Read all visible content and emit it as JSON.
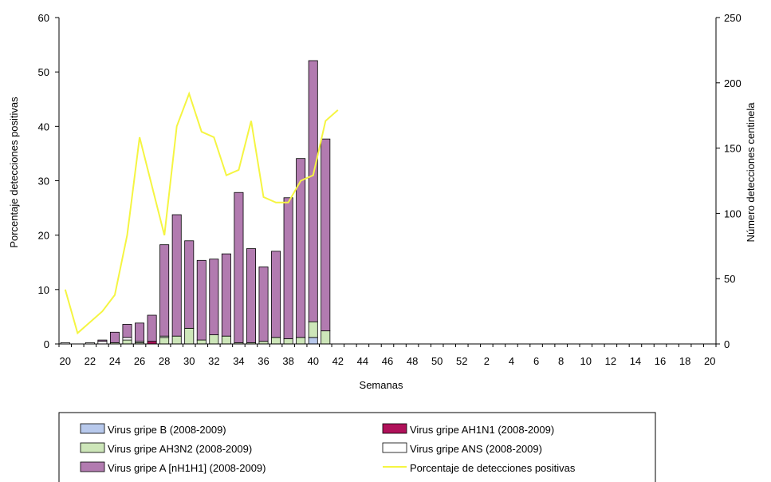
{
  "chart_data": {
    "type": "bar",
    "stacked": true,
    "xlabel": "Semanas",
    "ylabel_left": "Porcentaje detecciones positivas",
    "ylabel_right": "Número detecciones centinela",
    "ylim_left": [
      0,
      60
    ],
    "ylim_right": [
      0,
      250
    ],
    "yticks_left": [
      "0",
      "10",
      "20",
      "30",
      "40",
      "50",
      "60"
    ],
    "yticks_right": [
      "0",
      "50",
      "100",
      "150",
      "200",
      "250"
    ],
    "x_tick_labels": [
      "20",
      "22",
      "24",
      "26",
      "28",
      "30",
      "32",
      "34",
      "36",
      "38",
      "40",
      "42",
      "44",
      "46",
      "48",
      "50",
      "52",
      "2",
      "4",
      "6",
      "8",
      "10",
      "12",
      "14",
      "16",
      "18",
      "20"
    ],
    "weeks": [
      "20",
      "21",
      "22",
      "23",
      "24",
      "25",
      "26",
      "27",
      "28",
      "29",
      "30",
      "31",
      "32",
      "33",
      "34",
      "35",
      "36",
      "37",
      "38",
      "39",
      "40",
      "41",
      "42",
      "43",
      "44",
      "45",
      "46",
      "47",
      "48",
      "49",
      "50",
      "51",
      "52",
      "1",
      "2",
      "3",
      "4",
      "5",
      "6",
      "7",
      "8",
      "9",
      "10",
      "11",
      "12",
      "13",
      "14",
      "15",
      "16",
      "17",
      "18",
      "19",
      "20"
    ],
    "series": [
      {
        "name": "Virus gripe B (2008-2009)",
        "color": "#b8c9ec",
        "axis": "right",
        "values": [
          0,
          0,
          0,
          0,
          0,
          0,
          0,
          0,
          0,
          0,
          0,
          0,
          0,
          0,
          0,
          0,
          0,
          0,
          0,
          0,
          5,
          0
        ]
      },
      {
        "name": "Virus gripe AH1N1 (2008-2009)",
        "color": "#b0115a",
        "axis": "right",
        "values": [
          0,
          0,
          0,
          0,
          0,
          0,
          0,
          2,
          0,
          0,
          0,
          0,
          0,
          0,
          0,
          0,
          0,
          0,
          0,
          0,
          0,
          0
        ]
      },
      {
        "name": "Virus gripe AH3N2 (2008-2009)",
        "color": "#cde6b9",
        "axis": "right",
        "values": [
          0,
          0,
          0,
          0,
          1,
          3,
          1,
          0,
          5,
          6,
          12,
          3,
          7,
          6,
          1,
          1,
          2,
          5,
          4,
          5,
          12,
          10
        ]
      },
      {
        "name": "Virus gripe ANS (2008-2009)",
        "color": "#ffffff",
        "axis": "right",
        "values": [
          1,
          0,
          1,
          2,
          0,
          2,
          1,
          0,
          1,
          0,
          0,
          0,
          0,
          0,
          0,
          0,
          0,
          0,
          0,
          0,
          0,
          0
        ]
      },
      {
        "name": "Virus gripe A [nH1H1] (2008-2009)",
        "color": "#b27bb0",
        "axis": "right",
        "values": [
          0,
          0,
          0,
          1,
          8,
          10,
          14,
          20,
          70,
          93,
          67,
          61,
          58,
          63,
          115,
          72,
          57,
          66,
          108,
          137,
          200,
          147
        ]
      }
    ],
    "line": {
      "name": "Porcentaje de detecciones positivas",
      "color": "#f5f542",
      "axis": "left",
      "values": [
        10,
        2,
        4,
        6,
        9,
        20,
        38,
        29,
        20,
        40,
        46,
        39,
        38,
        31,
        32,
        41,
        27,
        26,
        26,
        30,
        31,
        41,
        43
      ]
    },
    "legend": {
      "placement": "bottom",
      "columns": 2
    }
  }
}
